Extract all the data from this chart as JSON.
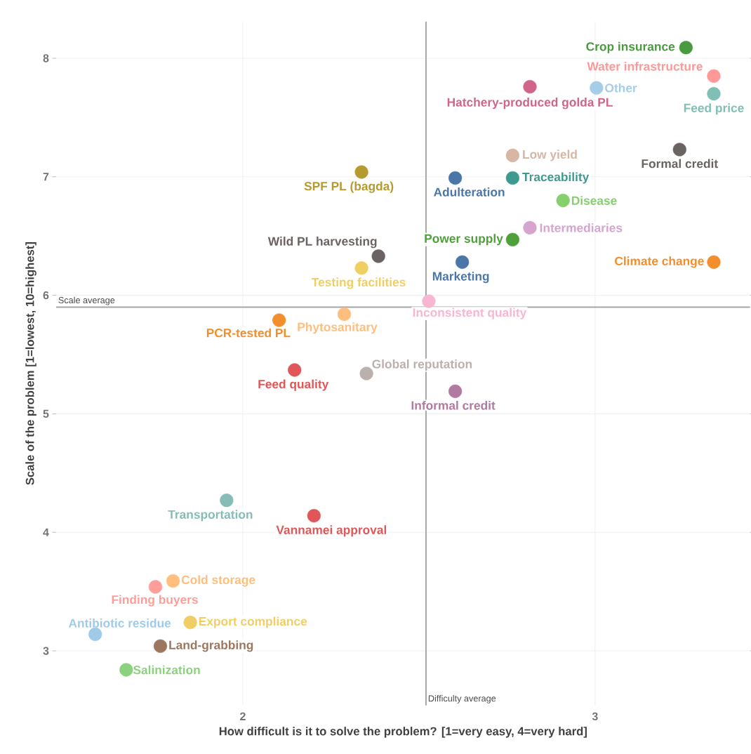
{
  "chart_data": {
    "type": "scatter",
    "xlabel": "How difficult is it to solve the problem? [1=very easy, 4=very hard]",
    "ylabel": "Scale of the problem [1=lowest, 10=highest]",
    "x": [
      3.258,
      3.337,
      3.004,
      3.337,
      2.815,
      2.766,
      3.24,
      2.337,
      2.603,
      2.766,
      2.909,
      2.815,
      2.766,
      2.385,
      2.337,
      2.623,
      3.337,
      2.528,
      2.288,
      2.103,
      2.147,
      2.351,
      2.603,
      1.954,
      2.202,
      1.802,
      1.752,
      1.851,
      1.581,
      1.766,
      1.669
    ],
    "values": [
      8.09,
      7.85,
      7.75,
      7.7,
      7.76,
      7.18,
      7.23,
      7.04,
      6.99,
      6.99,
      6.8,
      6.57,
      6.47,
      6.33,
      6.23,
      6.28,
      6.28,
      5.95,
      5.84,
      5.79,
      5.37,
      5.34,
      5.19,
      4.27,
      4.14,
      3.59,
      3.54,
      3.24,
      3.14,
      3.04,
      2.84
    ],
    "colors": [
      "#4a9a3f",
      "#ff9896",
      "#a6cde8",
      "#7fbfb5",
      "#d0648a",
      "#d8b6a4",
      "#6b6361",
      "#b59a2d",
      "#4a77a8",
      "#3e9a8f",
      "#86cf6e",
      "#d6a4ce",
      "#4ea03a",
      "#6b6361",
      "#f0cf62",
      "#4a77a8",
      "#f28e2b",
      "#f7b6d2",
      "#ffbe7d",
      "#f28e2b",
      "#e15759",
      "#bab0ac",
      "#b07aa1",
      "#86bcb6",
      "#e15759",
      "#ffbe7d",
      "#ff9d9a",
      "#f1ce63",
      "#a0cbe8",
      "#9d7660",
      "#8cd17d"
    ],
    "annotations": [
      {
        "text": "Crop insurance",
        "x": 3.258,
        "y": 8.09
      },
      {
        "text": "Water infrastructure",
        "x": 3.337,
        "y": 7.85
      },
      {
        "text": "Other",
        "x": 3.004,
        "y": 7.75
      },
      {
        "text": "Feed price",
        "x": 3.337,
        "y": 7.7
      },
      {
        "text": "Hatchery-produced golda PL",
        "x": 2.815,
        "y": 7.76
      },
      {
        "text": "Low yield",
        "x": 2.766,
        "y": 7.18
      },
      {
        "text": "Formal credit",
        "x": 3.24,
        "y": 7.23
      },
      {
        "text": "SPF PL (bagda)",
        "x": 2.337,
        "y": 7.04
      },
      {
        "text": "Adulteration",
        "x": 2.603,
        "y": 6.99
      },
      {
        "text": "Traceability",
        "x": 2.766,
        "y": 6.99
      },
      {
        "text": "Disease",
        "x": 2.909,
        "y": 6.8
      },
      {
        "text": "Intermediaries",
        "x": 2.815,
        "y": 6.57
      },
      {
        "text": "Power supply",
        "x": 2.766,
        "y": 6.47
      },
      {
        "text": "Wild PL harvesting",
        "x": 2.385,
        "y": 6.33
      },
      {
        "text": "Testing facilities",
        "x": 2.337,
        "y": 6.23
      },
      {
        "text": "Marketing",
        "x": 2.623,
        "y": 6.28
      },
      {
        "text": "Climate change",
        "x": 3.337,
        "y": 6.28
      },
      {
        "text": "Inconsistent quality",
        "x": 2.528,
        "y": 5.95
      },
      {
        "text": "Phytosanitary",
        "x": 2.288,
        "y": 5.84
      },
      {
        "text": "PCR-tested PL",
        "x": 2.103,
        "y": 5.79
      },
      {
        "text": "Feed quality",
        "x": 2.147,
        "y": 5.37
      },
      {
        "text": "Global reputation",
        "x": 2.351,
        "y": 5.34
      },
      {
        "text": "Informal credit",
        "x": 2.603,
        "y": 5.19
      },
      {
        "text": "Transportation",
        "x": 1.954,
        "y": 4.27
      },
      {
        "text": "Vannamei approval",
        "x": 2.202,
        "y": 4.14
      },
      {
        "text": "Cold storage",
        "x": 1.802,
        "y": 3.59
      },
      {
        "text": "Finding buyers",
        "x": 1.752,
        "y": 3.54
      },
      {
        "text": "Export compliance",
        "x": 1.851,
        "y": 3.24
      },
      {
        "text": "Antibiotic residue",
        "x": 1.581,
        "y": 3.14
      },
      {
        "text": "Land-grabbing",
        "x": 1.766,
        "y": 3.04
      },
      {
        "text": "Salinization",
        "x": 1.669,
        "y": 2.84
      }
    ],
    "ref_lines": [
      {
        "axis": "y",
        "value": 5.9,
        "label": "Scale average"
      },
      {
        "axis": "x",
        "value": 2.52,
        "label": "Difficulty average"
      }
    ],
    "xlim": [
      1.47,
      3.44
    ],
    "ylim": [
      2.54,
      8.31
    ],
    "xticks": [
      2,
      3
    ],
    "yticks": [
      3,
      4,
      5,
      6,
      7,
      8
    ],
    "grid": true
  }
}
